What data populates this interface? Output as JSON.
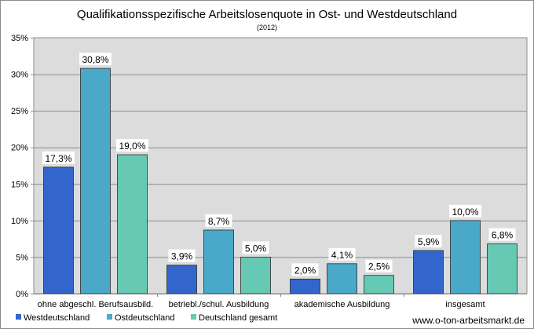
{
  "chart_data": {
    "type": "bar",
    "title": "Qualifikationsspezifische Arbeitslosenquote in Ost- und Westdeutschland",
    "subtitle": "(2012)",
    "categories": [
      "ohne abgeschl. Berufsausbild.",
      "betriebl./schul. Ausbildung",
      "akademische Ausbildung",
      "insgesamt"
    ],
    "series": [
      {
        "name": "Westdeutschland",
        "color": "#3366cc",
        "values": [
          17.3,
          3.9,
          2.0,
          5.9
        ],
        "labels": [
          "17,3%",
          "3,9%",
          "2,0%",
          "5,9%"
        ]
      },
      {
        "name": "Ostdeutschland",
        "color": "#4aa8c8",
        "values": [
          30.8,
          8.7,
          4.1,
          10.0
        ],
        "labels": [
          "30,8%",
          "8,7%",
          "4,1%",
          "10,0%"
        ]
      },
      {
        "name": "Deutschland gesamt",
        "color": "#66c9b4",
        "values": [
          19.0,
          5.0,
          2.5,
          6.8
        ],
        "labels": [
          "19,0%",
          "5,0%",
          "2,5%",
          "6,8%"
        ]
      }
    ],
    "ylim": [
      0,
      35
    ],
    "yticks": [
      0,
      5,
      10,
      15,
      20,
      25,
      30,
      35
    ],
    "ytick_labels": [
      "0%",
      "5%",
      "10%",
      "15%",
      "20%",
      "25%",
      "30%",
      "35%"
    ],
    "grid": true,
    "legend_position": "bottom-left",
    "plot_background": "#dcdcdc"
  },
  "source": "www.o-ton-arbeitsmarkt.de"
}
